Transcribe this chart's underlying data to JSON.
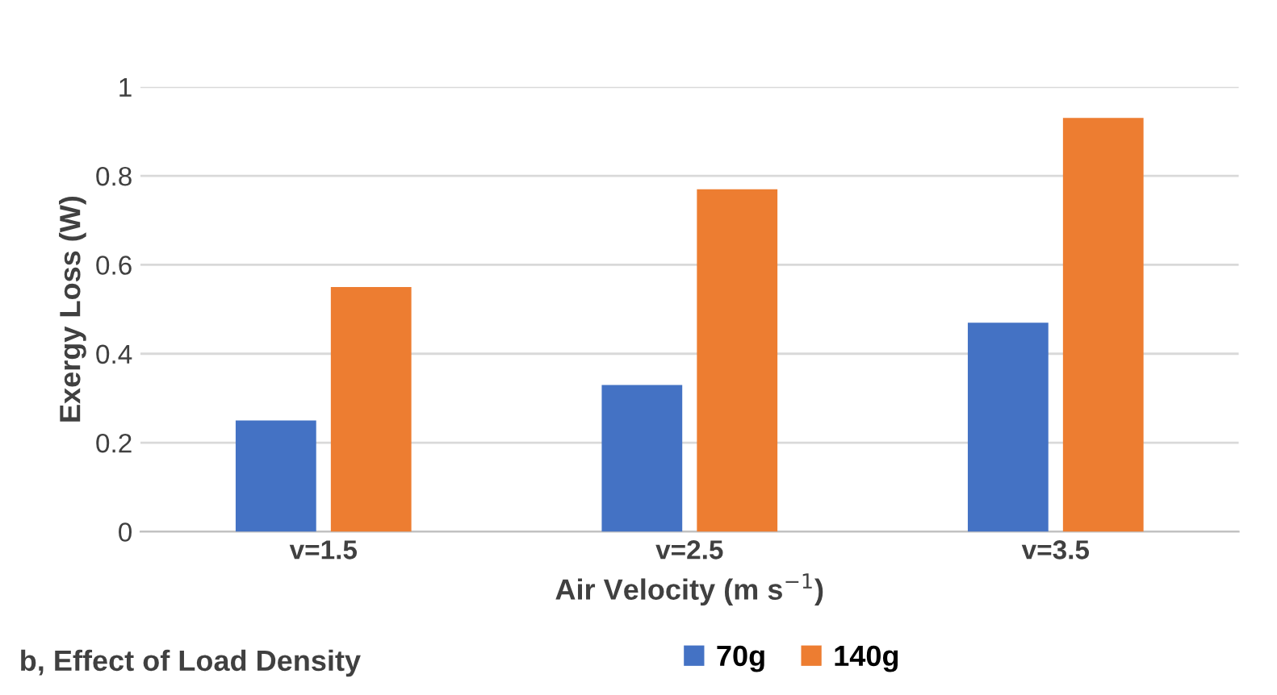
{
  "chart_data": {
    "type": "bar",
    "ylabel": "Exergy Loss (W)",
    "xlabel": "Air Velocity (m s$^{−1}$)",
    "categories": [
      "v=1.5",
      "v=2.5",
      "v=3.5"
    ],
    "series": [
      {
        "name": "70g",
        "color": "#4472c4",
        "values": [
          0.25,
          0.33,
          0.47
        ]
      },
      {
        "name": "140g",
        "color": "#ed7d31",
        "values": [
          0.55,
          0.77,
          0.93
        ]
      }
    ],
    "ylim": [
      0,
      1
    ],
    "yticks": [
      0,
      0.2,
      0.4,
      0.6,
      0.8,
      1
    ],
    "grid": "y",
    "legend": "bottom",
    "annotations": [
      "b, Effect of Load Density"
    ]
  }
}
